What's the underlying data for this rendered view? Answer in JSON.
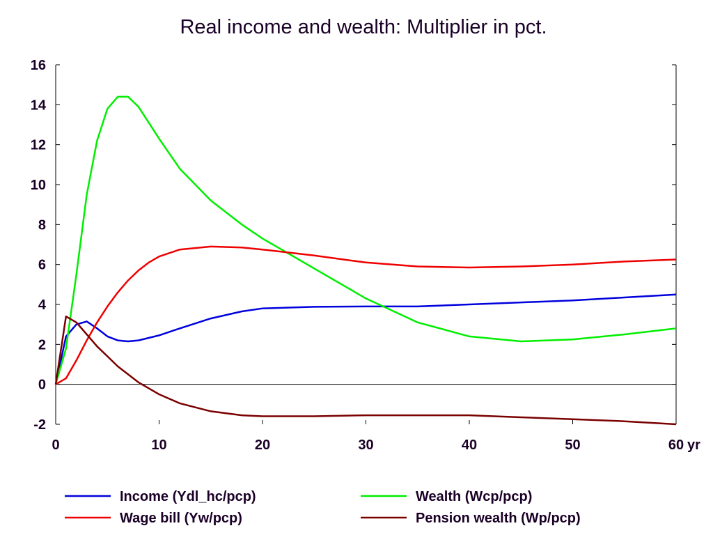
{
  "chart_data": {
    "type": "line",
    "title": "Real income and wealth: Multiplier in pct.",
    "xlabel": "",
    "ylabel": "",
    "x_unit_label": "yr",
    "xlim": [
      0,
      60
    ],
    "ylim": [
      -2,
      16
    ],
    "x_ticks": [
      0,
      10,
      20,
      30,
      40,
      50,
      60
    ],
    "x_tick_labels": [
      "0",
      "10",
      "20",
      "30",
      "40",
      "50",
      "60"
    ],
    "y_ticks": [
      -2,
      0,
      2,
      4,
      6,
      8,
      10,
      12,
      14,
      16
    ],
    "y_tick_labels": [
      "-2",
      "0",
      "2",
      "4",
      "6",
      "8",
      "10",
      "12",
      "14",
      "16"
    ],
    "grid": false,
    "zero_line": true,
    "legend_position": "bottom",
    "series": [
      {
        "name": "Income (Ydl_hc/pcp)",
        "color": "#0000dd",
        "x": [
          0,
          1,
          2,
          3,
          4,
          5,
          6,
          7,
          8,
          10,
          12,
          15,
          18,
          20,
          25,
          30,
          35,
          40,
          45,
          50,
          55,
          60
        ],
        "y": [
          0,
          2.4,
          3.0,
          3.15,
          2.8,
          2.4,
          2.2,
          2.15,
          2.2,
          2.45,
          2.8,
          3.3,
          3.65,
          3.8,
          3.88,
          3.9,
          3.9,
          4.0,
          4.1,
          4.2,
          4.35,
          4.5
        ]
      },
      {
        "name": "Wealth (Wcp/pcp)",
        "color": "#00ee00",
        "x": [
          0,
          1,
          2,
          3,
          4,
          5,
          6,
          7,
          8,
          9,
          10,
          12,
          15,
          18,
          20,
          22,
          25,
          30,
          35,
          40,
          45,
          50,
          55,
          60
        ],
        "y": [
          0,
          1.8,
          5.5,
          9.5,
          12.2,
          13.8,
          14.4,
          14.4,
          13.9,
          13.1,
          12.3,
          10.8,
          9.2,
          8.0,
          7.3,
          6.7,
          5.8,
          4.3,
          3.1,
          2.4,
          2.15,
          2.25,
          2.5,
          2.8
        ]
      },
      {
        "name": "Wage bill (Yw/pcp)",
        "color": "#ee0000",
        "x": [
          0,
          1,
          2,
          3,
          4,
          5,
          6,
          7,
          8,
          9,
          10,
          12,
          15,
          18,
          20,
          25,
          30,
          35,
          40,
          45,
          50,
          55,
          60
        ],
        "y": [
          0,
          0.3,
          1.2,
          2.2,
          3.1,
          3.9,
          4.6,
          5.2,
          5.7,
          6.1,
          6.4,
          6.75,
          6.9,
          6.85,
          6.75,
          6.45,
          6.1,
          5.9,
          5.85,
          5.9,
          6.0,
          6.15,
          6.25
        ]
      },
      {
        "name": "Pension wealth (Wp/pcp)",
        "color": "#7a0000",
        "x": [
          0,
          1,
          2,
          3,
          4,
          5,
          6,
          7,
          8,
          9,
          10,
          12,
          15,
          18,
          20,
          25,
          30,
          35,
          40,
          45,
          50,
          55,
          60
        ],
        "y": [
          0,
          3.4,
          3.1,
          2.5,
          1.9,
          1.4,
          0.9,
          0.5,
          0.1,
          -0.2,
          -0.5,
          -0.95,
          -1.35,
          -1.55,
          -1.6,
          -1.6,
          -1.55,
          -1.55,
          -1.55,
          -1.65,
          -1.75,
          -1.85,
          -2.0
        ]
      }
    ]
  }
}
